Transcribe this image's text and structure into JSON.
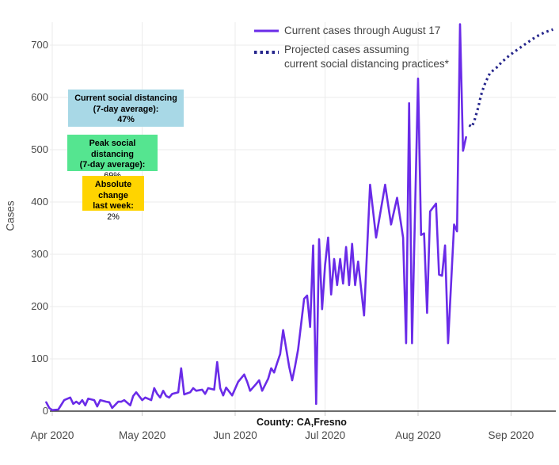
{
  "chart_data": {
    "type": "line",
    "title": "",
    "ylabel": "Cases",
    "xlabel": "County: CA,Fresno",
    "ylim": [
      0,
      760
    ],
    "grid": true,
    "legend_position": "top-right",
    "y_ticks": [
      0,
      100,
      200,
      300,
      400,
      500,
      600,
      700
    ],
    "x_ticks": [
      {
        "label": "Apr 2020",
        "date": "2020-04-01"
      },
      {
        "label": "May 2020",
        "date": "2020-05-01"
      },
      {
        "label": "Jun 2020",
        "date": "2020-06-01"
      },
      {
        "label": "Jul 2020",
        "date": "2020-07-01"
      },
      {
        "label": "Aug 2020",
        "date": "2020-08-01"
      },
      {
        "label": "Sep 2020",
        "date": "2020-09-01"
      }
    ],
    "legend": {
      "current": "Current cases through August 17",
      "projected_line1": "Projected cases assuming",
      "projected_line2": "current social distancing practices*"
    },
    "annotation_boxes": [
      {
        "id": "current-social-distancing",
        "line1": "Current social distancing",
        "line2": "(7-day average):",
        "value": "47%",
        "bg": "#A8D8E6"
      },
      {
        "id": "peak-social-distancing",
        "line1": "Peak social distancing",
        "line2": "(7-day average):",
        "value": "69%",
        "bg": "#55E590"
      },
      {
        "id": "absolute-change",
        "line1": "Absolute change",
        "line2": "last week:",
        "value": "2%",
        "bg": "#FFD400"
      }
    ],
    "series": [
      {
        "name": "Current cases through August 17",
        "style": "solid",
        "color": "#6A2BE8",
        "points": [
          [
            "2020-03-30",
            17
          ],
          [
            "2020-03-31",
            6
          ],
          [
            "2020-04-01",
            2
          ],
          [
            "2020-04-03",
            3
          ],
          [
            "2020-04-05",
            21
          ],
          [
            "2020-04-07",
            26
          ],
          [
            "2020-04-08",
            14
          ],
          [
            "2020-04-09",
            18
          ],
          [
            "2020-04-10",
            14
          ],
          [
            "2020-04-11",
            21
          ],
          [
            "2020-04-12",
            11
          ],
          [
            "2020-04-13",
            24
          ],
          [
            "2020-04-15",
            21
          ],
          [
            "2020-04-16",
            9
          ],
          [
            "2020-04-17",
            21
          ],
          [
            "2020-04-19",
            18
          ],
          [
            "2020-04-20",
            17
          ],
          [
            "2020-04-21",
            6
          ],
          [
            "2020-04-23",
            18
          ],
          [
            "2020-04-24",
            18
          ],
          [
            "2020-04-25",
            21
          ],
          [
            "2020-04-27",
            11
          ],
          [
            "2020-04-28",
            29
          ],
          [
            "2020-04-29",
            36
          ],
          [
            "2020-05-01",
            21
          ],
          [
            "2020-05-02",
            26
          ],
          [
            "2020-05-04",
            21
          ],
          [
            "2020-05-05",
            44
          ],
          [
            "2020-05-06",
            33
          ],
          [
            "2020-05-07",
            26
          ],
          [
            "2020-05-08",
            39
          ],
          [
            "2020-05-09",
            29
          ],
          [
            "2020-05-10",
            26
          ],
          [
            "2020-05-11",
            33
          ],
          [
            "2020-05-13",
            36
          ],
          [
            "2020-05-14",
            82
          ],
          [
            "2020-05-15",
            32
          ],
          [
            "2020-05-17",
            36
          ],
          [
            "2020-05-18",
            44
          ],
          [
            "2020-05-19",
            39
          ],
          [
            "2020-05-21",
            41
          ],
          [
            "2020-05-22",
            33
          ],
          [
            "2020-05-23",
            44
          ],
          [
            "2020-05-25",
            41
          ],
          [
            "2020-05-26",
            94
          ],
          [
            "2020-05-27",
            44
          ],
          [
            "2020-05-28",
            30
          ],
          [
            "2020-05-29",
            45
          ],
          [
            "2020-05-31",
            30
          ],
          [
            "2020-06-02",
            56
          ],
          [
            "2020-06-04",
            70
          ],
          [
            "2020-06-05",
            56
          ],
          [
            "2020-06-06",
            39
          ],
          [
            "2020-06-08",
            52
          ],
          [
            "2020-06-09",
            59
          ],
          [
            "2020-06-10",
            39
          ],
          [
            "2020-06-12",
            62
          ],
          [
            "2020-06-13",
            82
          ],
          [
            "2020-06-14",
            74
          ],
          [
            "2020-06-15",
            92
          ],
          [
            "2020-06-16",
            109
          ],
          [
            "2020-06-17",
            155
          ],
          [
            "2020-06-18",
            120
          ],
          [
            "2020-06-19",
            85
          ],
          [
            "2020-06-20",
            59
          ],
          [
            "2020-06-21",
            86
          ],
          [
            "2020-06-22",
            118
          ],
          [
            "2020-06-24",
            215
          ],
          [
            "2020-06-25",
            221
          ],
          [
            "2020-06-26",
            161
          ],
          [
            "2020-06-27",
            317
          ],
          [
            "2020-06-28",
            14
          ],
          [
            "2020-06-29",
            329
          ],
          [
            "2020-06-30",
            195
          ],
          [
            "2020-07-01",
            280
          ],
          [
            "2020-07-02",
            332
          ],
          [
            "2020-07-03",
            223
          ],
          [
            "2020-07-04",
            291
          ],
          [
            "2020-07-05",
            241
          ],
          [
            "2020-07-06",
            291
          ],
          [
            "2020-07-07",
            244
          ],
          [
            "2020-07-08",
            314
          ],
          [
            "2020-07-09",
            241
          ],
          [
            "2020-07-10",
            320
          ],
          [
            "2020-07-11",
            241
          ],
          [
            "2020-07-12",
            286
          ],
          [
            "2020-07-14",
            183
          ],
          [
            "2020-07-16",
            433
          ],
          [
            "2020-07-18",
            332
          ],
          [
            "2020-07-21",
            433
          ],
          [
            "2020-07-23",
            357
          ],
          [
            "2020-07-25",
            408
          ],
          [
            "2020-07-27",
            332
          ],
          [
            "2020-07-28",
            130
          ],
          [
            "2020-07-29",
            589
          ],
          [
            "2020-07-30",
            130
          ],
          [
            "2020-08-01",
            636
          ],
          [
            "2020-08-02",
            337
          ],
          [
            "2020-08-03",
            340
          ],
          [
            "2020-08-04",
            188
          ],
          [
            "2020-08-05",
            382
          ],
          [
            "2020-08-07",
            397
          ],
          [
            "2020-08-08",
            261
          ],
          [
            "2020-08-09",
            259
          ],
          [
            "2020-08-10",
            317
          ],
          [
            "2020-08-11",
            130
          ],
          [
            "2020-08-13",
            357
          ],
          [
            "2020-08-14",
            344
          ],
          [
            "2020-08-15",
            740
          ],
          [
            "2020-08-16",
            498
          ],
          [
            "2020-08-17",
            524
          ]
        ]
      },
      {
        "name": "Projected cases assuming current social distancing practices*",
        "style": "dotted",
        "color": "#26268C",
        "points": [
          [
            "2020-08-18",
            547
          ],
          [
            "2020-08-19",
            544
          ],
          [
            "2020-08-20",
            560
          ],
          [
            "2020-08-21",
            580
          ],
          [
            "2020-08-22",
            604
          ],
          [
            "2020-08-23",
            622
          ],
          [
            "2020-08-24",
            635
          ],
          [
            "2020-08-25",
            647
          ],
          [
            "2020-08-27",
            656
          ],
          [
            "2020-08-29",
            668
          ],
          [
            "2020-08-31",
            678
          ],
          [
            "2020-09-02",
            687
          ],
          [
            "2020-09-04",
            695
          ],
          [
            "2020-09-06",
            703
          ],
          [
            "2020-09-08",
            711
          ],
          [
            "2020-09-10",
            718
          ],
          [
            "2020-09-12",
            724
          ],
          [
            "2020-09-14",
            728
          ],
          [
            "2020-09-15",
            730
          ]
        ]
      }
    ]
  }
}
